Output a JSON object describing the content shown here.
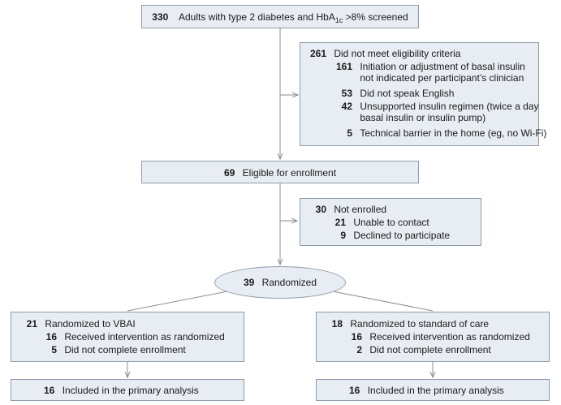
{
  "screened": {
    "count": "330",
    "text_pre": "Adults with type 2 diabetes and HbA",
    "text_sub": "1c",
    "text_post": " >8% screened"
  },
  "excluded": {
    "count": "261",
    "label": "Did not meet eligibility criteria",
    "reasons": [
      {
        "count": "161",
        "line1": "Initiation or adjustment of basal insulin",
        "line2": "not indicated per participant’s clinician"
      },
      {
        "count": "53",
        "line1": "Did not speak English",
        "line2": ""
      },
      {
        "count": "42",
        "line1": "Unsupported insulin regimen (twice a day",
        "line2": "basal insulin or insulin pump)"
      },
      {
        "count": "5",
        "line1": "Technical barrier in the home (eg, no Wi-Fi)",
        "line2": ""
      }
    ]
  },
  "eligible": {
    "count": "69",
    "label": "Eligible for enrollment"
  },
  "not_enrolled": {
    "count": "30",
    "label": "Not enrolled",
    "reasons": [
      {
        "count": "21",
        "label": "Unable to contact"
      },
      {
        "count": "9",
        "label": "Declined to participate"
      }
    ]
  },
  "randomized": {
    "count": "39",
    "label": "Randomized"
  },
  "arm_vbai": {
    "count": "21",
    "label": "Randomized to VBAI",
    "received": {
      "count": "16",
      "label": "Received intervention as randomized"
    },
    "incomplete": {
      "count": "5",
      "label": "Did not complete enrollment"
    },
    "analysis": {
      "count": "16",
      "label": "Included in the primary analysis"
    }
  },
  "arm_soc": {
    "count": "18",
    "label": "Randomized to standard of care",
    "received": {
      "count": "16",
      "label": "Received intervention as randomized"
    },
    "incomplete": {
      "count": "2",
      "label": "Did not complete enrollment"
    },
    "analysis": {
      "count": "16",
      "label": "Included in the primary analysis"
    }
  },
  "colors": {
    "box_fill": "#e8edf3",
    "box_border": "#8f9cab",
    "line": "#8c8c8c"
  }
}
